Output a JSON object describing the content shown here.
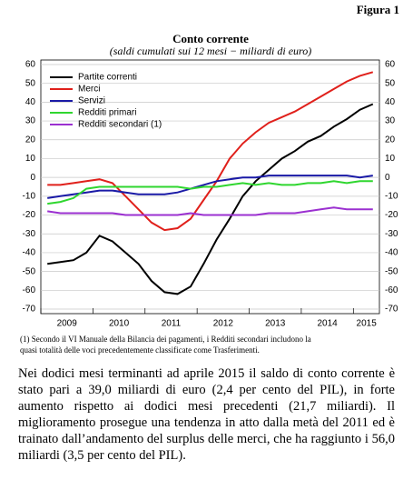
{
  "figure_label": "Figura 1",
  "chart_data": {
    "type": "line",
    "title": "Conto corrente",
    "subtitle": "(saldi cumulati sui 12 mesi − miliardi di euro)",
    "categories": [
      null,
      null,
      "2009",
      null,
      null,
      null,
      "2010",
      null,
      null,
      null,
      "2011",
      null,
      null,
      null,
      "2012",
      null,
      null,
      null,
      "2013",
      null,
      null,
      null,
      "2014",
      null,
      null,
      "2015"
    ],
    "series": [
      {
        "name": "Partite correnti",
        "color": "#000000",
        "values": [
          -46,
          -45,
          -44,
          -40,
          -31,
          -34,
          -40,
          -46,
          -55,
          -61,
          -62,
          -58,
          -46,
          -33,
          -22,
          -10,
          -2,
          4,
          10,
          14,
          19,
          22,
          27,
          31,
          36,
          39
        ]
      },
      {
        "name": "Merci",
        "color": "#e0201b",
        "values": [
          -4,
          -4,
          -3,
          -2,
          -1,
          -3,
          -10,
          -17,
          -24,
          -28,
          -27,
          -22,
          -12,
          -2,
          10,
          18,
          24,
          29,
          32,
          35,
          39,
          43,
          47,
          51,
          54,
          56
        ]
      },
      {
        "name": "Servizi",
        "color": "#1a1aa6",
        "values": [
          -11,
          -10,
          -9,
          -8,
          -7,
          -7,
          -8,
          -9,
          -9,
          -9,
          -8,
          -6,
          -4,
          -2,
          -1,
          0,
          0,
          1,
          1,
          1,
          1,
          1,
          1,
          1,
          0,
          1
        ]
      },
      {
        "name": "Redditi primari",
        "color": "#2fd62f",
        "values": [
          -14,
          -13,
          -11,
          -6,
          -5,
          -5,
          -5,
          -5,
          -5,
          -5,
          -5,
          -6,
          -5,
          -5,
          -4,
          -3,
          -4,
          -3,
          -4,
          -4,
          -3,
          -3,
          -2,
          -3,
          -2,
          -2
        ]
      },
      {
        "name": "Redditi secondari (1)",
        "color": "#9b30d0",
        "values": [
          -18,
          -19,
          -19,
          -19,
          -19,
          -19,
          -20,
          -20,
          -20,
          -20,
          -20,
          -19,
          -20,
          -20,
          -20,
          -20,
          -20,
          -19,
          -19,
          -19,
          -18,
          -17,
          -16,
          -17,
          -17,
          -17
        ]
      }
    ],
    "ylim": [
      -70,
      60
    ],
    "yticks": [
      -70,
      -60,
      -50,
      -40,
      -30,
      -20,
      -10,
      0,
      10,
      20,
      30,
      40,
      50,
      60
    ],
    "grid": true,
    "legend": "upper left"
  },
  "footnote": [
    "(1) Secondo il VI Manuale della Bilancia dei pagamenti, i Redditi secondari includono la",
    "quasi totalità delle voci precedentemente classificate come Trasferimenti."
  ],
  "paragraph": "Nei dodici mesi terminanti ad aprile 2015 il saldo di conto corrente è stato pari a 39,0 miliardi di euro (2,4 per cento del PIL), in forte aumento rispetto ai dodici mesi precedenti (21,7 miliardi). Il miglioramento prosegue una tendenza in atto dalla metà del 2011 ed è trainato dall’andamento del surplus delle merci, che ha raggiunto i 56,0 miliardi (3,5 per cento del PIL)."
}
